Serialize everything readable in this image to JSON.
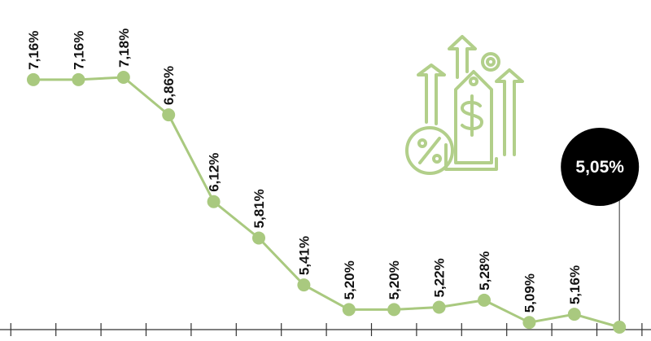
{
  "chart_data": {
    "type": "line",
    "categories": [
      null,
      null,
      null,
      null,
      null,
      null,
      null,
      null,
      null,
      null,
      null,
      null,
      null,
      null
    ],
    "values": [
      7.16,
      7.16,
      7.18,
      6.86,
      6.12,
      5.81,
      5.41,
      5.2,
      5.2,
      5.22,
      5.28,
      5.09,
      5.16,
      5.05
    ],
    "value_labels": [
      "7,16%",
      "7,16%",
      "7,18%",
      "6,86%",
      "6,12%",
      "5,81%",
      "5,41%",
      "5,20%",
      "5,20%",
      "5,22%",
      "5,28%",
      "5,09%",
      "5,16%",
      "5,05%"
    ],
    "color": "#a9c97f",
    "highlight_color": "#000000"
  }
}
